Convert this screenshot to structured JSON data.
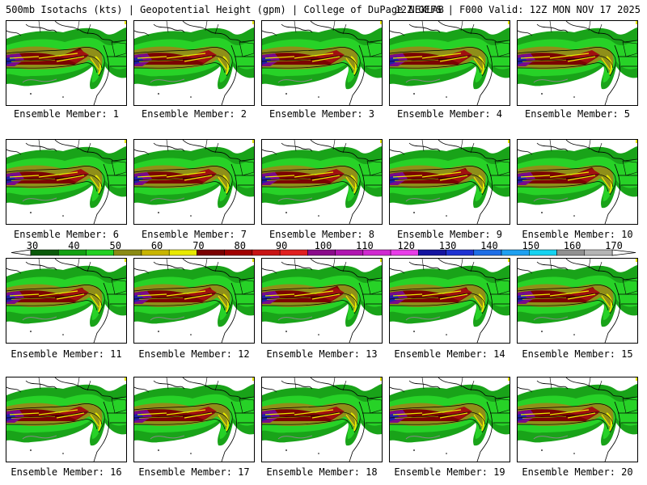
{
  "header": {
    "left": "500mb Isotachs (kts) | Geopotential Height (gpm) | College of DuPage NEXLAB",
    "right": "12Z GEFS | F000 Valid: 12Z MON NOV 17 2025"
  },
  "panel_prefix": "Ensemble Member:",
  "members": [
    "1",
    "2",
    "3",
    "4",
    "5",
    "6",
    "7",
    "8",
    "9",
    "10",
    "11",
    "12",
    "13",
    "14",
    "15",
    "16",
    "17",
    "18",
    "19",
    "20"
  ],
  "colorbar": {
    "labels": [
      "30",
      "40",
      "50",
      "60",
      "70",
      "80",
      "90",
      "100",
      "110",
      "120",
      "130",
      "140",
      "150",
      "160",
      "170"
    ],
    "colors": [
      "#0a5a0a",
      "#12a012",
      "#22d022",
      "#8a8a14",
      "#c8b400",
      "#e8e800",
      "#7a0000",
      "#a00000",
      "#c81414",
      "#e02020",
      "#8a0a8a",
      "#b014b0",
      "#d028d0",
      "#e83ce8",
      "#1414a0",
      "#1e32d2",
      "#1e6ee6",
      "#1ea0f0",
      "#14d2f0",
      "#909090",
      "#b4b4b4"
    ]
  }
}
